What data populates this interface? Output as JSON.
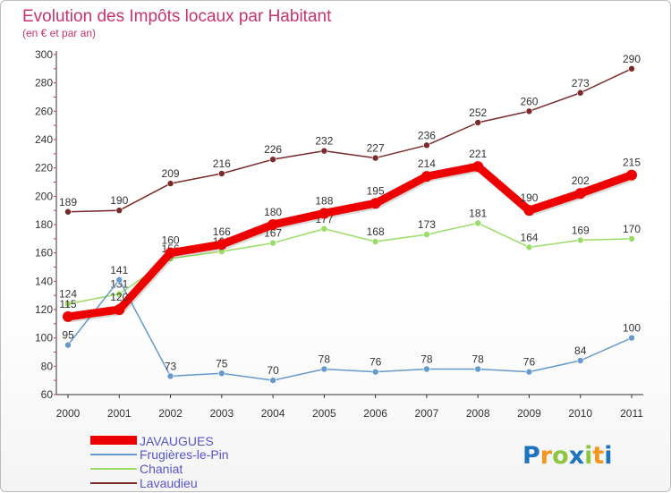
{
  "title": "Evolution des Impôts locaux par Habitant",
  "subtitle": "(en € et par an)",
  "brand": "Proxiti",
  "chart_data": {
    "type": "line",
    "x": [
      "2000",
      "2001",
      "2002",
      "2003",
      "2004",
      "2005",
      "2006",
      "2007",
      "2008",
      "2009",
      "2010",
      "2011"
    ],
    "ylim": [
      60,
      300
    ],
    "yticks": [
      60,
      80,
      100,
      120,
      140,
      160,
      180,
      200,
      220,
      240,
      260,
      280,
      300
    ],
    "grid": false,
    "legend_position": "bottom-left",
    "series": [
      {
        "name": "JAVAUGUES",
        "color": "#ee0000",
        "values": [
          115,
          120,
          160,
          166,
          180,
          188,
          195,
          214,
          221,
          190,
          202,
          215
        ]
      },
      {
        "name": "Frugières-le-Pin",
        "color": "#6699cc",
        "values": [
          95,
          141,
          73,
          75,
          70,
          78,
          76,
          78,
          78,
          76,
          84,
          100
        ]
      },
      {
        "name": "Chaniat",
        "color": "#99dd66",
        "values": [
          124,
          131,
          156,
          161,
          167,
          177,
          168,
          173,
          181,
          164,
          169,
          170
        ]
      },
      {
        "name": "Lavaudieu",
        "color": "#7a2a2a",
        "values": [
          189,
          190,
          209,
          216,
          226,
          232,
          227,
          236,
          252,
          260,
          273,
          290
        ]
      }
    ]
  }
}
